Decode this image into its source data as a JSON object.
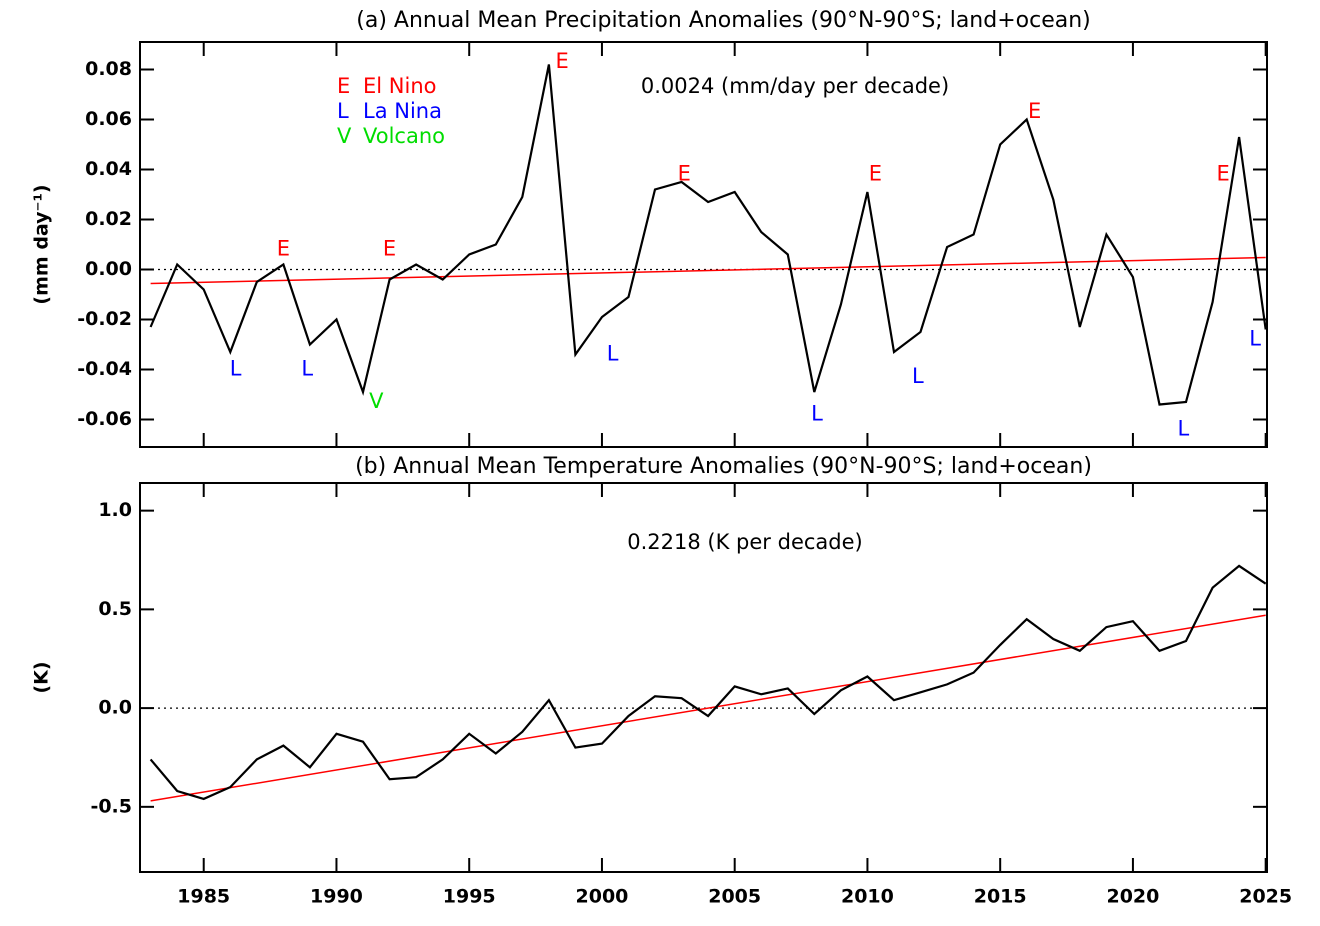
{
  "chart_data": [
    {
      "type": "line",
      "title": "(a) Annual Mean Precipitation Anomalies (90°N-90°S; land+ocean)",
      "ylabel": "(mm day⁻¹)",
      "x": [
        1983,
        1984,
        1985,
        1986,
        1987,
        1988,
        1989,
        1990,
        1991,
        1992,
        1993,
        1994,
        1995,
        1996,
        1997,
        1998,
        1999,
        2000,
        2001,
        2002,
        2003,
        2004,
        2005,
        2006,
        2007,
        2008,
        2009,
        2010,
        2011,
        2012,
        2013,
        2014,
        2015,
        2016,
        2017,
        2018,
        2019,
        2020,
        2021,
        2022,
        2023,
        2024,
        2025
      ],
      "series": [
        {
          "color": "#000000",
          "values": [
            -0.023,
            0.002,
            -0.008,
            -0.033,
            -0.005,
            0.002,
            -0.03,
            -0.02,
            -0.049,
            -0.004,
            0.002,
            -0.004,
            0.006,
            0.01,
            0.029,
            0.082,
            -0.034,
            -0.019,
            -0.011,
            0.032,
            0.035,
            0.027,
            0.031,
            0.015,
            0.006,
            -0.049,
            -0.014,
            0.031,
            -0.033,
            -0.025,
            0.009,
            0.014,
            0.05,
            0.06,
            0.028,
            -0.023,
            0.014,
            -0.003,
            -0.054,
            -0.053,
            -0.013,
            0.053,
            -0.024
          ]
        }
      ],
      "trend": {
        "color": "#ff0000",
        "x": [
          1983,
          2025
        ],
        "values": [
          -0.0056,
          0.0048
        ]
      },
      "hline": 0,
      "trend_label": "0.0024 (mm/day per decade)",
      "legend": [
        {
          "key": "E",
          "label": "El Nino",
          "color": "#ff0000"
        },
        {
          "key": "L",
          "label": "La Nina",
          "color": "#0000ff"
        },
        {
          "key": "V",
          "label": "Volcano",
          "color": "#00dd00"
        }
      ],
      "annotations": [
        {
          "text": "E",
          "x": 1988,
          "y": 0.008,
          "color": "#ff0000"
        },
        {
          "text": "E",
          "x": 1992,
          "y": 0.008,
          "color": "#ff0000"
        },
        {
          "text": "E",
          "x": 1998.5,
          "y": 0.083,
          "color": "#ff0000"
        },
        {
          "text": "E",
          "x": 2003.1,
          "y": 0.038,
          "color": "#ff0000"
        },
        {
          "text": "E",
          "x": 2010.3,
          "y": 0.038,
          "color": "#ff0000"
        },
        {
          "text": "E",
          "x": 2016.3,
          "y": 0.063,
          "color": "#ff0000"
        },
        {
          "text": "E",
          "x": 2023.4,
          "y": 0.038,
          "color": "#ff0000"
        },
        {
          "text": "L",
          "x": 1986.2,
          "y": -0.04,
          "color": "#0000ff"
        },
        {
          "text": "L",
          "x": 1988.9,
          "y": -0.04,
          "color": "#0000ff"
        },
        {
          "text": "L",
          "x": 2000.4,
          "y": -0.034,
          "color": "#0000ff"
        },
        {
          "text": "L",
          "x": 2008.1,
          "y": -0.058,
          "color": "#0000ff"
        },
        {
          "text": "L",
          "x": 2011.9,
          "y": -0.043,
          "color": "#0000ff"
        },
        {
          "text": "L",
          "x": 2021.9,
          "y": -0.064,
          "color": "#0000ff"
        },
        {
          "text": "L",
          "x": 2024.6,
          "y": -0.028,
          "color": "#0000ff"
        },
        {
          "text": "V",
          "x": 1991.5,
          "y": -0.053,
          "color": "#00dd00"
        }
      ],
      "xlim": [
        1982.6,
        2025.05
      ],
      "ylim": [
        -0.071,
        0.091
      ],
      "xticks": [
        1985,
        1990,
        1995,
        2000,
        2005,
        2010,
        2015,
        2020,
        2025
      ],
      "show_xtick_labels": false,
      "yticks": [
        -0.06,
        -0.04,
        -0.02,
        {
          "value": 0,
          "label": "0.00"
        },
        0.02,
        0.04,
        0.06,
        0.08
      ]
    },
    {
      "type": "line",
      "title": "(b) Annual Mean Temperature Anomalies (90°N-90°S; land+ocean)",
      "ylabel": "(K)",
      "x": [
        1983,
        1984,
        1985,
        1986,
        1987,
        1988,
        1989,
        1990,
        1991,
        1992,
        1993,
        1994,
        1995,
        1996,
        1997,
        1998,
        1999,
        2000,
        2001,
        2002,
        2003,
        2004,
        2005,
        2006,
        2007,
        2008,
        2009,
        2010,
        2011,
        2012,
        2013,
        2014,
        2015,
        2016,
        2017,
        2018,
        2019,
        2020,
        2021,
        2022,
        2023,
        2024,
        2025
      ],
      "series": [
        {
          "color": "#000000",
          "values": [
            -0.26,
            -0.42,
            -0.46,
            -0.4,
            -0.26,
            -0.19,
            -0.3,
            -0.13,
            -0.17,
            -0.36,
            -0.35,
            -0.26,
            -0.13,
            -0.23,
            -0.12,
            0.04,
            -0.2,
            -0.18,
            -0.04,
            0.06,
            0.05,
            -0.04,
            0.11,
            0.07,
            0.1,
            -0.03,
            0.09,
            0.16,
            0.04,
            0.08,
            0.12,
            0.18,
            0.32,
            0.45,
            0.35,
            0.29,
            0.41,
            0.44,
            0.29,
            0.34,
            0.61,
            0.72,
            0.63
          ]
        }
      ],
      "trend": {
        "color": "#ff0000",
        "x": [
          1983,
          2025
        ],
        "values": [
          -0.47,
          0.47
        ]
      },
      "hline": 0,
      "trend_label": "0.2218 (K per decade)",
      "xlim": [
        1982.6,
        2025.05
      ],
      "ylim": [
        -0.83,
        1.14
      ],
      "xticks": [
        1985,
        1990,
        1995,
        2000,
        2005,
        2010,
        2015,
        2020,
        2025
      ],
      "show_xtick_labels": true,
      "yticks": [
        -0.5,
        {
          "value": 0,
          "label": "0.0"
        },
        0.5,
        {
          "value": 1,
          "label": "1.0"
        }
      ]
    }
  ]
}
